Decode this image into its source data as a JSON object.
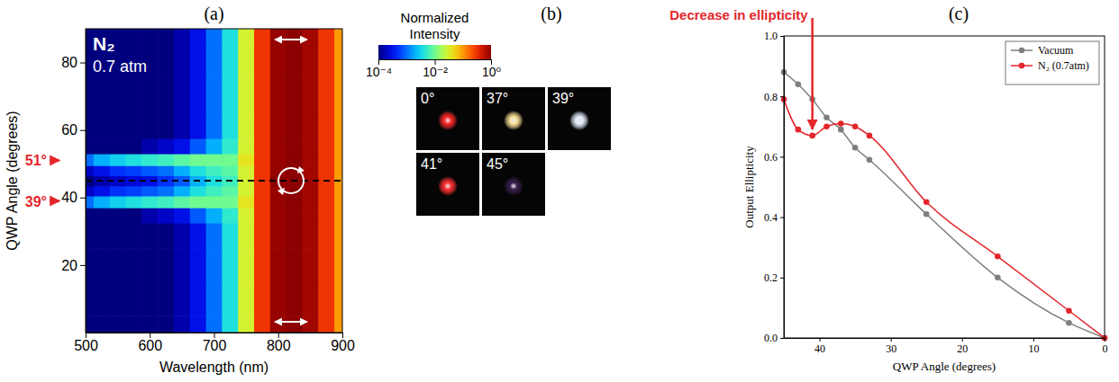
{
  "chart_data": [
    {
      "type": "heatmap",
      "panel": "(a)",
      "x_label": "Wavelength (nm)",
      "y_label": "QWP Angle (degrees)",
      "xlim": [
        500,
        900
      ],
      "xticks": [
        500,
        600,
        700,
        800,
        900
      ],
      "ylim": [
        0,
        90
      ],
      "yticks": [
        20,
        40,
        60,
        80
      ],
      "x": [
        500,
        525,
        550,
        575,
        600,
        625,
        650,
        675,
        700,
        725,
        750,
        775,
        800,
        825,
        850,
        875,
        900
      ],
      "y": [
        0,
        10,
        20,
        30,
        35,
        39,
        42,
        45,
        48,
        51,
        55,
        60,
        70,
        80,
        90
      ],
      "cells": [
        [
          0.0001,
          0.0001,
          0.0001,
          0.0001,
          0.0001,
          0.0001,
          0.00015,
          0.0003,
          0.001,
          0.004,
          0.03,
          0.3,
          0.9,
          1,
          0.8,
          0.3,
          0.1
        ],
        [
          0.0001,
          0.0001,
          0.0001,
          0.0001,
          0.0001,
          0.0001,
          0.00015,
          0.0003,
          0.001,
          0.004,
          0.03,
          0.3,
          0.9,
          1,
          0.8,
          0.3,
          0.1
        ],
        [
          0.0001,
          0.0001,
          0.0001,
          0.0001,
          0.0001,
          0.0001,
          0.00015,
          0.0003,
          0.001,
          0.004,
          0.03,
          0.3,
          0.9,
          1,
          0.8,
          0.3,
          0.1
        ],
        [
          0.0001,
          0.0001,
          0.0001,
          0.0001,
          0.0001,
          0.0001,
          0.00015,
          0.0003,
          0.001,
          0.004,
          0.03,
          0.3,
          0.9,
          1,
          0.8,
          0.3,
          0.1
        ],
        [
          0.0001,
          0.0001,
          0.0001,
          0.0001,
          0.00015,
          0.0002,
          0.0003,
          0.0008,
          0.002,
          0.005,
          0.03,
          0.3,
          0.9,
          1,
          0.8,
          0.3,
          0.1
        ],
        [
          0.001,
          0.002,
          0.003,
          0.004,
          0.005,
          0.006,
          0.008,
          0.01,
          0.01,
          0.01,
          0.04,
          0.3,
          0.9,
          1,
          0.8,
          0.3,
          0.1
        ],
        [
          0.0002,
          0.0003,
          0.0005,
          0.0006,
          0.0008,
          0.001,
          0.002,
          0.004,
          0.006,
          0.008,
          0.03,
          0.3,
          0.9,
          1,
          0.8,
          0.3,
          0.1
        ],
        [
          0.0001,
          0.00015,
          0.0002,
          0.00025,
          0.0003,
          0.0005,
          0.0008,
          0.002,
          0.004,
          0.006,
          0.03,
          0.3,
          1,
          1,
          0.8,
          0.3,
          0.1
        ],
        [
          0.0002,
          0.0003,
          0.0005,
          0.0006,
          0.0008,
          0.001,
          0.002,
          0.004,
          0.006,
          0.008,
          0.03,
          0.3,
          0.9,
          1,
          0.8,
          0.3,
          0.1
        ],
        [
          0.001,
          0.002,
          0.003,
          0.004,
          0.005,
          0.006,
          0.008,
          0.01,
          0.01,
          0.01,
          0.04,
          0.3,
          0.9,
          1,
          0.8,
          0.3,
          0.1
        ],
        [
          0.0001,
          0.0001,
          0.0001,
          0.0001,
          0.00015,
          0.0002,
          0.0003,
          0.0008,
          0.002,
          0.005,
          0.03,
          0.3,
          0.9,
          1,
          0.8,
          0.3,
          0.1
        ],
        [
          0.0001,
          0.0001,
          0.0001,
          0.0001,
          0.0001,
          0.0001,
          0.00015,
          0.0003,
          0.001,
          0.004,
          0.03,
          0.3,
          0.9,
          1,
          0.8,
          0.3,
          0.1
        ],
        [
          0.0001,
          0.0001,
          0.0001,
          0.0001,
          0.0001,
          0.0001,
          0.00015,
          0.0003,
          0.001,
          0.004,
          0.03,
          0.3,
          0.9,
          1,
          0.8,
          0.3,
          0.1
        ],
        [
          0.0001,
          0.0001,
          0.0001,
          0.0001,
          0.0001,
          0.0001,
          0.00015,
          0.0003,
          0.001,
          0.004,
          0.03,
          0.3,
          0.9,
          1,
          0.8,
          0.3,
          0.1
        ],
        [
          0.0001,
          0.0001,
          0.0001,
          0.0001,
          0.0001,
          0.0001,
          0.00015,
          0.0003,
          0.001,
          0.004,
          0.03,
          0.3,
          0.9,
          1,
          0.8,
          0.3,
          0.1
        ]
      ],
      "colorbar_title": "Normalized Intensity",
      "colorbar_range": [
        0.0001,
        1
      ],
      "colorbar_ticks": [
        {
          "value": 0.0001,
          "label": "10⁻⁴"
        },
        {
          "value": 0.01,
          "label": "10⁻²"
        },
        {
          "value": 1,
          "label": "10⁰"
        }
      ],
      "reference_line": 45,
      "annotations": [
        {
          "text": "N₂"
        },
        {
          "text": "0.7 atm"
        },
        {
          "text": "51°",
          "y": 51
        },
        {
          "text": "39°",
          "y": 39
        }
      ]
    },
    {
      "type": "image_grid",
      "panel": "(b)",
      "labels": [
        "0°",
        "37°",
        "39°",
        "41°",
        "45°"
      ],
      "colors": [
        "#ff2a2a",
        "#ffe49a",
        "#e6efff",
        "#ff3030",
        "#3a2050"
      ]
    },
    {
      "type": "line",
      "panel": "(c)",
      "x_label": "QWP Angle (degrees)",
      "y_label": "Output Ellipticity",
      "xlim": [
        45,
        0
      ],
      "xticks": [
        40,
        30,
        20,
        10,
        0
      ],
      "ylim": [
        0,
        1
      ],
      "yticks": [
        {
          "value": 0,
          "label": "0.0"
        },
        0.2,
        0.4,
        0.6,
        0.8,
        {
          "value": 1,
          "label": "1.0"
        }
      ],
      "grid": false,
      "legend": "upper right",
      "x": [
        45,
        43,
        41,
        39,
        37,
        35,
        33,
        25,
        15,
        5,
        0
      ],
      "series": [
        {
          "name": "Vacuum",
          "color": "#7f7f7f",
          "marker": "circle",
          "line_style": "solid",
          "values": [
            0.88,
            0.84,
            0.79,
            0.73,
            0.69,
            0.63,
            0.59,
            0.41,
            0.2,
            0.05,
            0
          ]
        },
        {
          "name": "N₂ (0.7atm)",
          "color": "#e3262b",
          "marker": "circle",
          "line_style": "solid",
          "values": [
            0.79,
            0.69,
            0.67,
            0.7,
            0.71,
            0.7,
            0.67,
            0.45,
            0.27,
            0.09,
            0
          ]
        }
      ],
      "annotations": [
        {
          "text": "Decrease in ellipticity",
          "x": 41,
          "y": 0.67
        }
      ]
    }
  ]
}
